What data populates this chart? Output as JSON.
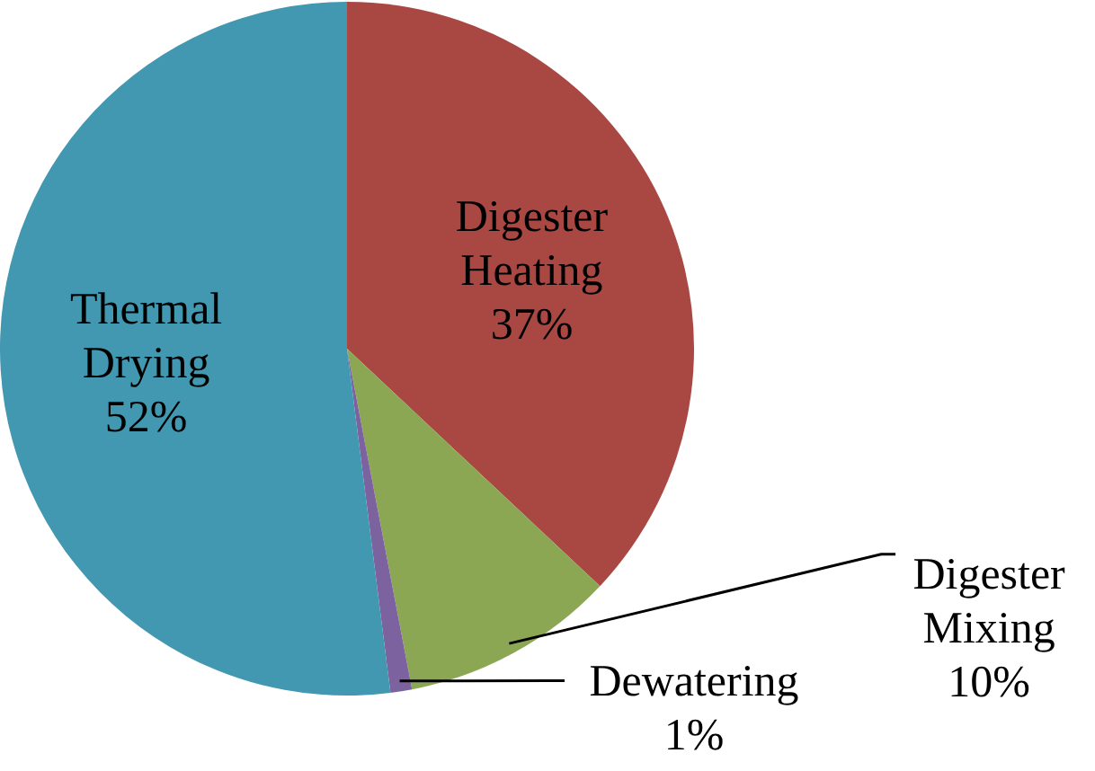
{
  "chart_data": {
    "type": "pie",
    "categories": [
      "Digester Heating",
      "Digester Mixing",
      "Dewatering",
      "Thermal Drying"
    ],
    "values": [
      37,
      10,
      1,
      52
    ],
    "value_labels": [
      "37%",
      "10%",
      "1%",
      "52%"
    ],
    "colors": [
      "#a94743",
      "#8ba753",
      "#7d62a0",
      "#4298b0"
    ],
    "legend": false
  }
}
